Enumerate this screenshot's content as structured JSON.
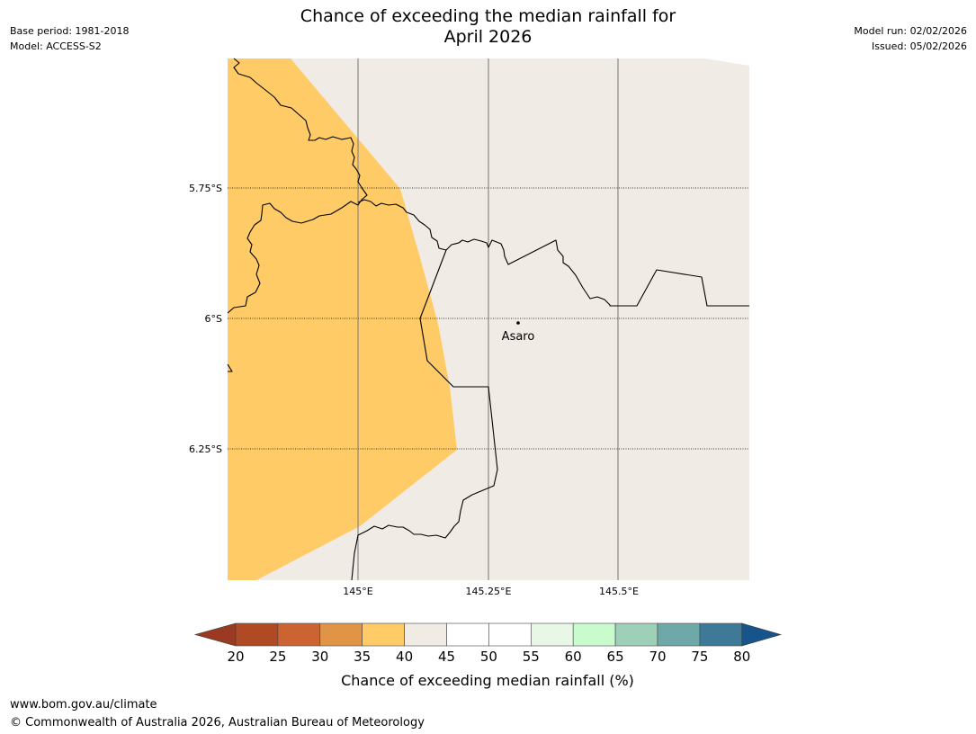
{
  "header": {
    "title_line1": "Chance of exceeding the median rainfall for",
    "title_line2": "April 2026",
    "base_period": "Base period: 1981-2018",
    "model": "Model: ACCESS-S2",
    "model_run": "Model run: 02/02/2026",
    "issued": "Issued: 05/02/2026"
  },
  "map": {
    "lat_labels": [
      "5.75°S",
      "6°S",
      "6.25°S"
    ],
    "lon_labels": [
      "145°E",
      "145.25°E",
      "145.5°E"
    ],
    "place": "Asaro",
    "colors": {
      "below_median_fill": "#fecb66",
      "neutral_fill": "#f0ebe5",
      "border": "#000000",
      "meridian": "#888888"
    }
  },
  "legend": {
    "label": "Chance of exceeding median rainfall (%)",
    "ticks": [
      "20",
      "25",
      "30",
      "35",
      "40",
      "45",
      "50",
      "55",
      "60",
      "65",
      "70",
      "75",
      "80"
    ],
    "colors": [
      "#9a3a23",
      "#b04a25",
      "#cb6432",
      "#e09446",
      "#fecb66",
      "#f0ebe5",
      "#ffffff",
      "#ffffff",
      "#e8f7e6",
      "#c8fccc",
      "#9ecfb8",
      "#6ea8a8",
      "#3f7998",
      "#16548b"
    ]
  },
  "footer": {
    "website": "www.bom.gov.au/climate",
    "copyright": "© Commonwealth of Australia 2026, Australian Bureau of Meteorology"
  }
}
